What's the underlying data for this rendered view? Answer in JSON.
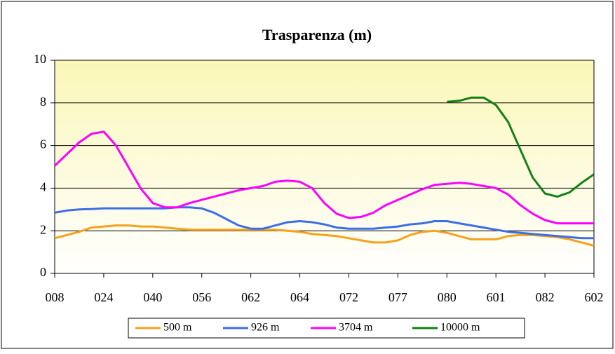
{
  "chart_data": {
    "type": "line",
    "title": "Trasparenza (m)",
    "categories": [
      "008",
      null,
      null,
      null,
      "024",
      null,
      null,
      null,
      "040",
      null,
      null,
      null,
      "056",
      null,
      null,
      null,
      "062",
      null,
      null,
      null,
      "064",
      null,
      null,
      null,
      "072",
      null,
      null,
      null,
      "077",
      null,
      null,
      null,
      "080",
      null,
      null,
      null,
      "601",
      null,
      null,
      null,
      "082",
      null,
      null,
      null,
      "602"
    ],
    "series": [
      {
        "name": "500 m",
        "color": "#f7a11a",
        "values": [
          1.65,
          1.8,
          1.95,
          2.15,
          2.2,
          2.25,
          2.25,
          2.2,
          2.2,
          2.15,
          2.1,
          2.05,
          2.05,
          2.05,
          2.05,
          2.05,
          2.05,
          2.05,
          2.05,
          2.0,
          1.95,
          1.85,
          1.8,
          1.75,
          1.65,
          1.55,
          1.45,
          1.45,
          1.55,
          1.8,
          1.95,
          2.0,
          1.9,
          1.75,
          1.6,
          1.6,
          1.6,
          1.75,
          1.8,
          1.8,
          1.75,
          1.7,
          1.6,
          1.45,
          1.3
        ]
      },
      {
        "name": "926 m",
        "color": "#3c6ee6",
        "values": [
          2.85,
          2.95,
          3.0,
          3.02,
          3.05,
          3.05,
          3.05,
          3.05,
          3.05,
          3.05,
          3.1,
          3.1,
          3.05,
          2.85,
          2.55,
          2.25,
          2.1,
          2.1,
          2.25,
          2.4,
          2.45,
          2.4,
          2.3,
          2.15,
          2.1,
          2.1,
          2.1,
          2.15,
          2.2,
          2.3,
          2.35,
          2.45,
          2.45,
          2.35,
          2.25,
          2.15,
          2.05,
          1.95,
          1.9,
          1.85,
          1.8,
          1.75,
          1.7,
          1.65,
          1.65
        ]
      },
      {
        "name": "3704 m",
        "color": "#ff00ff",
        "values": [
          5.05,
          5.6,
          6.15,
          6.55,
          6.65,
          6.0,
          5.0,
          4.0,
          3.3,
          3.1,
          3.1,
          3.3,
          3.45,
          3.6,
          3.75,
          3.9,
          4.0,
          4.1,
          4.3,
          4.35,
          4.3,
          4.0,
          3.3,
          2.8,
          2.6,
          2.65,
          2.85,
          3.2,
          3.45,
          3.7,
          3.95,
          4.15,
          4.2,
          4.25,
          4.2,
          4.1,
          4.0,
          3.7,
          3.2,
          2.8,
          2.5,
          2.35,
          2.35,
          2.35,
          2.35
        ]
      },
      {
        "name": "10000 m",
        "color": "#128012",
        "values": [
          null,
          null,
          null,
          null,
          null,
          null,
          null,
          null,
          null,
          null,
          null,
          null,
          null,
          null,
          null,
          null,
          null,
          null,
          null,
          null,
          null,
          null,
          null,
          null,
          null,
          null,
          null,
          null,
          null,
          null,
          null,
          null,
          8.05,
          8.1,
          8.25,
          8.25,
          7.9,
          7.1,
          5.8,
          4.5,
          3.75,
          3.6,
          3.8,
          4.25,
          4.65
        ]
      }
    ],
    "ylim": [
      0,
      10
    ],
    "yticks": [
      0,
      2,
      4,
      6,
      8,
      10
    ],
    "grid": true
  }
}
